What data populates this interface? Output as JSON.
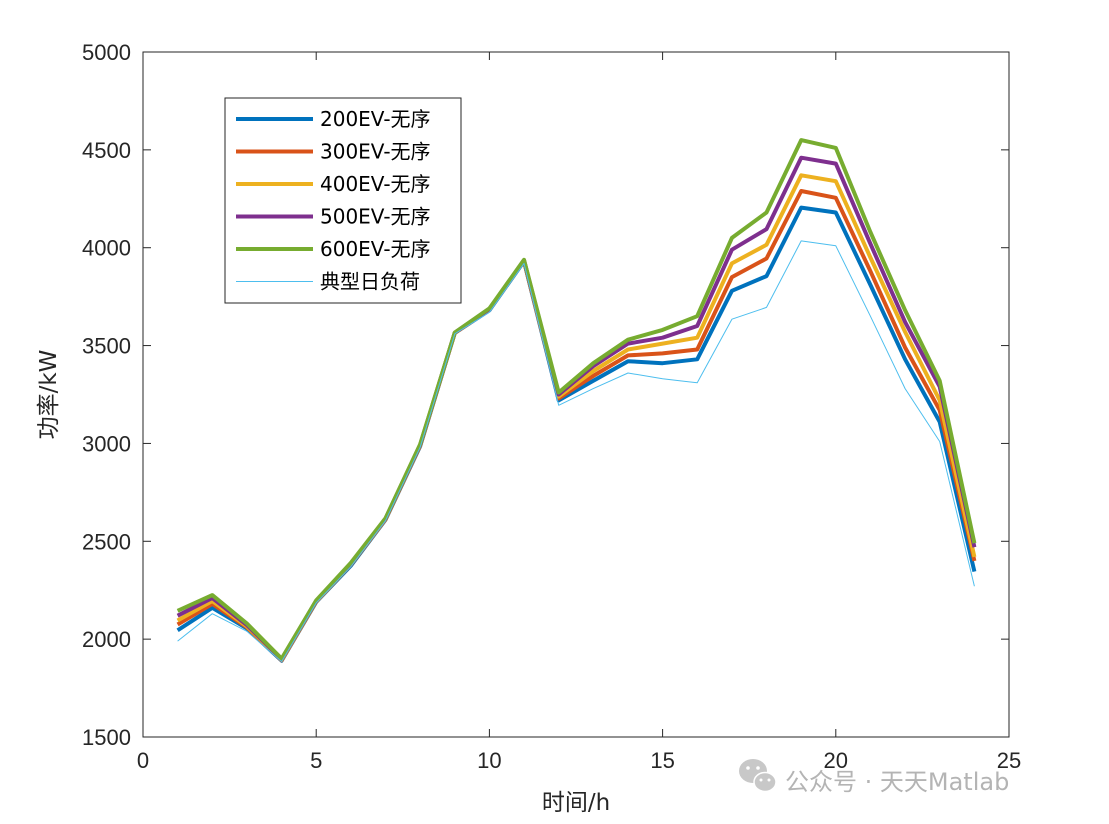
{
  "chart_data": {
    "type": "line",
    "xlabel": "时间/h",
    "ylabel": "功率/kW",
    "xlim": [
      0,
      25
    ],
    "ylim": [
      1500,
      5000
    ],
    "xticks": [
      "0",
      "5",
      "10",
      "15",
      "20",
      "25"
    ],
    "yticks": [
      "1500",
      "2000",
      "2500",
      "3000",
      "3500",
      "4000",
      "4500",
      "5000"
    ],
    "x": [
      1,
      2,
      3,
      4,
      5,
      6,
      7,
      8,
      9,
      10,
      11,
      12,
      13,
      14,
      15,
      16,
      17,
      18,
      19,
      20,
      21,
      22,
      23,
      24
    ],
    "legend_position": "upper-left",
    "grid": false,
    "series": [
      {
        "name": "200EV-无序",
        "color": "#0072BD",
        "values": [
          2045,
          2160,
          2055,
          1890,
          2190,
          2375,
          2610,
          2985,
          3565,
          3680,
          3930,
          3220,
          3320,
          3420,
          3410,
          3430,
          3780,
          3855,
          4205,
          4180,
          3810,
          3430,
          3110,
          2345
        ]
      },
      {
        "name": "300EV-无序",
        "color": "#D95319",
        "values": [
          2075,
          2180,
          2060,
          1892,
          2192,
          2380,
          2612,
          2988,
          3565,
          3683,
          3932,
          3230,
          3345,
          3450,
          3460,
          3480,
          3850,
          3945,
          4290,
          4255,
          3880,
          3490,
          3170,
          2400
        ]
      },
      {
        "name": "400EV-无序",
        "color": "#EDB120",
        "values": [
          2095,
          2195,
          2065,
          1895,
          2194,
          2383,
          2614,
          2990,
          3565,
          3685,
          3934,
          3240,
          3370,
          3480,
          3510,
          3540,
          3920,
          4015,
          4370,
          4340,
          3950,
          3570,
          3220,
          2420
        ]
      },
      {
        "name": "500EV-无序",
        "color": "#7E2F8E",
        "values": [
          2120,
          2210,
          2072,
          1898,
          2196,
          2386,
          2616,
          2992,
          3566,
          3687,
          3936,
          3250,
          3395,
          3510,
          3540,
          3600,
          3990,
          4095,
          4460,
          4430,
          4020,
          3620,
          3290,
          2470
        ]
      },
      {
        "name": "600EV-无序",
        "color": "#77AC30",
        "values": [
          2145,
          2225,
          2080,
          1900,
          2198,
          2390,
          2618,
          2995,
          3567,
          3690,
          3938,
          3260,
          3410,
          3530,
          3580,
          3650,
          4050,
          4180,
          4550,
          4510,
          4080,
          3680,
          3320,
          2490
        ]
      },
      {
        "name": "典型日负荷",
        "color": "#4DBEEE",
        "values": [
          1990,
          2130,
          2040,
          1885,
          2185,
          2370,
          2605,
          2980,
          3560,
          3670,
          3920,
          3195,
          3280,
          3360,
          3330,
          3310,
          3635,
          3695,
          4035,
          4010,
          3650,
          3280,
          3010,
          2270
        ]
      }
    ]
  },
  "watermark": {
    "text": "公众号 · 天天Matlab",
    "icon": "wechat-icon"
  }
}
